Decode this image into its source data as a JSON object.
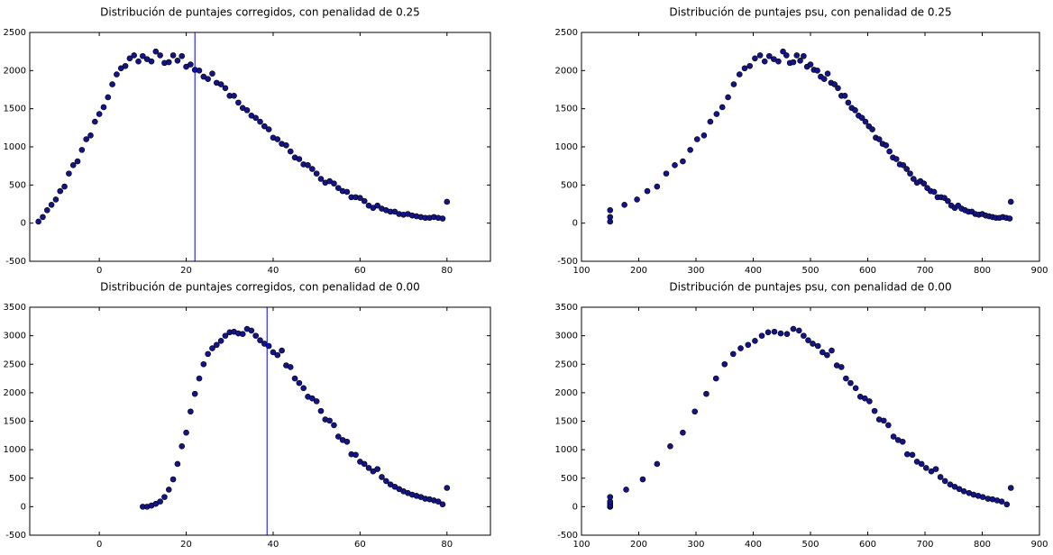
{
  "chart_data": [
    {
      "type": "scatter",
      "title": "Distribución de puntajes corregidos, con penalidad de 0.25",
      "x": [
        -14,
        -13,
        -12,
        -11,
        -10,
        -9,
        -8,
        -7,
        -6,
        -5,
        -4,
        -3,
        -2,
        -1,
        0,
        1,
        2,
        3,
        4,
        5,
        6,
        7,
        8,
        9,
        10,
        11,
        12,
        13,
        14,
        15,
        16,
        17,
        18,
        19,
        20,
        21,
        22,
        23,
        24,
        25,
        26,
        27,
        28,
        29,
        30,
        31,
        32,
        33,
        34,
        35,
        36,
        37,
        38,
        39,
        40,
        41,
        42,
        43,
        44,
        45,
        46,
        47,
        48,
        49,
        50,
        51,
        52,
        53,
        54,
        55,
        56,
        57,
        58,
        59,
        60,
        61,
        62,
        63,
        64,
        65,
        66,
        67,
        68,
        69,
        70,
        71,
        72,
        73,
        74,
        75,
        76,
        77,
        78,
        79,
        80
      ],
      "values": [
        20,
        80,
        170,
        240,
        310,
        420,
        480,
        650,
        760,
        810,
        960,
        1100,
        1150,
        1330,
        1430,
        1520,
        1650,
        1820,
        1950,
        2030,
        2060,
        2160,
        2200,
        2120,
        2190,
        2150,
        2120,
        2250,
        2200,
        2100,
        2110,
        2200,
        2130,
        2190,
        2050,
        2080,
        2010,
        2000,
        1920,
        1890,
        1960,
        1840,
        1820,
        1770,
        1670,
        1670,
        1580,
        1510,
        1480,
        1410,
        1380,
        1330,
        1270,
        1230,
        1120,
        1100,
        1040,
        1020,
        940,
        860,
        840,
        770,
        760,
        710,
        650,
        580,
        530,
        550,
        520,
        460,
        420,
        410,
        340,
        340,
        330,
        290,
        230,
        200,
        230,
        190,
        170,
        150,
        150,
        120,
        110,
        120,
        100,
        90,
        80,
        70,
        70,
        80,
        70,
        60,
        280
      ],
      "color": "#14148a",
      "vline": 22,
      "xlim": [
        -16,
        90
      ],
      "ylim": [
        -500,
        2500
      ],
      "xticks": [
        0,
        20,
        40,
        60,
        80
      ],
      "yticks": [
        -500,
        0,
        500,
        1000,
        1500,
        2000,
        2500
      ]
    },
    {
      "type": "scatter",
      "title": "Distribución de puntajes psu, con penalidad de 0.25",
      "x": [
        150,
        150,
        150,
        175,
        197,
        215,
        232,
        248,
        263,
        277,
        290,
        302,
        314,
        325,
        336,
        346,
        356,
        366,
        376,
        385,
        394,
        403,
        412,
        420,
        428,
        436,
        444,
        452,
        458,
        464,
        470,
        476,
        482,
        488,
        494,
        500,
        506,
        512,
        518,
        524,
        530,
        536,
        542,
        548,
        554,
        560,
        566,
        572,
        578,
        584,
        590,
        596,
        602,
        608,
        614,
        620,
        626,
        632,
        638,
        644,
        650,
        656,
        662,
        668,
        674,
        680,
        686,
        692,
        698,
        704,
        710,
        716,
        722,
        728,
        734,
        740,
        746,
        752,
        758,
        764,
        770,
        776,
        782,
        788,
        794,
        800,
        806,
        812,
        818,
        824,
        830,
        836,
        842,
        848,
        850
      ],
      "values": [
        20,
        80,
        170,
        240,
        310,
        420,
        480,
        650,
        760,
        810,
        960,
        1100,
        1150,
        1330,
        1430,
        1520,
        1650,
        1820,
        1950,
        2030,
        2060,
        2160,
        2200,
        2120,
        2190,
        2150,
        2120,
        2250,
        2200,
        2100,
        2110,
        2200,
        2130,
        2190,
        2050,
        2080,
        2010,
        2000,
        1920,
        1890,
        1960,
        1840,
        1820,
        1770,
        1670,
        1670,
        1580,
        1510,
        1480,
        1410,
        1380,
        1330,
        1270,
        1230,
        1120,
        1100,
        1040,
        1020,
        940,
        860,
        840,
        770,
        760,
        710,
        650,
        580,
        530,
        550,
        520,
        460,
        420,
        410,
        340,
        340,
        330,
        290,
        230,
        200,
        230,
        190,
        170,
        150,
        150,
        120,
        110,
        120,
        100,
        90,
        80,
        70,
        70,
        80,
        70,
        60,
        280
      ],
      "color": "#14148a",
      "xlim": [
        100,
        900
      ],
      "ylim": [
        -500,
        2500
      ],
      "xticks": [
        100,
        200,
        300,
        400,
        500,
        600,
        700,
        800,
        900
      ],
      "yticks": [
        -500,
        0,
        500,
        1000,
        1500,
        2000,
        2500
      ]
    },
    {
      "type": "scatter",
      "title": "Distribución de puntajes corregidos, con penalidad de 0.00",
      "x": [
        10,
        11,
        12,
        13,
        14,
        15,
        16,
        17,
        18,
        19,
        20,
        21,
        22,
        23,
        24,
        25,
        26,
        27,
        28,
        29,
        30,
        31,
        32,
        33,
        34,
        35,
        36,
        37,
        38,
        39,
        40,
        41,
        42,
        43,
        44,
        45,
        46,
        47,
        48,
        49,
        50,
        51,
        52,
        53,
        54,
        55,
        56,
        57,
        58,
        59,
        60,
        61,
        62,
        63,
        64,
        65,
        66,
        67,
        68,
        69,
        70,
        71,
        72,
        73,
        74,
        75,
        76,
        77,
        78,
        79,
        80
      ],
      "values": [
        0,
        0,
        20,
        50,
        90,
        170,
        300,
        480,
        750,
        1060,
        1300,
        1670,
        1980,
        2250,
        2500,
        2680,
        2780,
        2840,
        2910,
        3000,
        3060,
        3070,
        3040,
        3030,
        3120,
        3090,
        3000,
        2920,
        2860,
        2820,
        2710,
        2660,
        2740,
        2480,
        2450,
        2250,
        2170,
        2080,
        1930,
        1900,
        1850,
        1680,
        1530,
        1510,
        1430,
        1230,
        1170,
        1140,
        920,
        910,
        790,
        750,
        680,
        620,
        660,
        520,
        450,
        390,
        350,
        310,
        270,
        240,
        210,
        190,
        170,
        140,
        130,
        110,
        90,
        40,
        330
      ],
      "color": "#14148a",
      "vline": 38.6,
      "xlim": [
        -16,
        90
      ],
      "ylim": [
        -500,
        3500
      ],
      "xticks": [
        0,
        20,
        40,
        60,
        80
      ],
      "yticks": [
        -500,
        0,
        500,
        1000,
        1500,
        2000,
        2500,
        3000,
        3500
      ]
    },
    {
      "type": "scatter",
      "title": "Distribución de puntajes psu, con penalidad de 0.00",
      "x": [
        150,
        150,
        150,
        150,
        150,
        150,
        178,
        207,
        232,
        255,
        277,
        298,
        318,
        335,
        350,
        365,
        378,
        391,
        403,
        415,
        426,
        437,
        448,
        459,
        470,
        480,
        488,
        496,
        504,
        513,
        521,
        529,
        537,
        546,
        554,
        562,
        570,
        579,
        587,
        595,
        603,
        612,
        620,
        628,
        636,
        645,
        653,
        661,
        669,
        678,
        686,
        694,
        702,
        711,
        719,
        727,
        735,
        744,
        752,
        760,
        768,
        777,
        785,
        793,
        801,
        810,
        818,
        826,
        834,
        843,
        850
      ],
      "values": [
        0,
        0,
        20,
        50,
        90,
        170,
        300,
        480,
        750,
        1060,
        1300,
        1670,
        1980,
        2250,
        2500,
        2680,
        2780,
        2840,
        2910,
        3000,
        3060,
        3070,
        3040,
        3030,
        3120,
        3090,
        3000,
        2920,
        2860,
        2820,
        2710,
        2660,
        2740,
        2480,
        2450,
        2250,
        2170,
        2080,
        1930,
        1900,
        1850,
        1680,
        1530,
        1510,
        1430,
        1230,
        1170,
        1140,
        920,
        910,
        790,
        750,
        680,
        620,
        660,
        520,
        450,
        390,
        350,
        310,
        270,
        240,
        210,
        190,
        170,
        140,
        130,
        110,
        90,
        40,
        330
      ],
      "color": "#14148a",
      "xlim": [
        100,
        900
      ],
      "ylim": [
        -500,
        3500
      ],
      "xticks": [
        100,
        200,
        300,
        400,
        500,
        600,
        700,
        800,
        900
      ],
      "yticks": [
        -500,
        0,
        500,
        1000,
        1500,
        2000,
        2500,
        3000,
        3500
      ]
    }
  ]
}
